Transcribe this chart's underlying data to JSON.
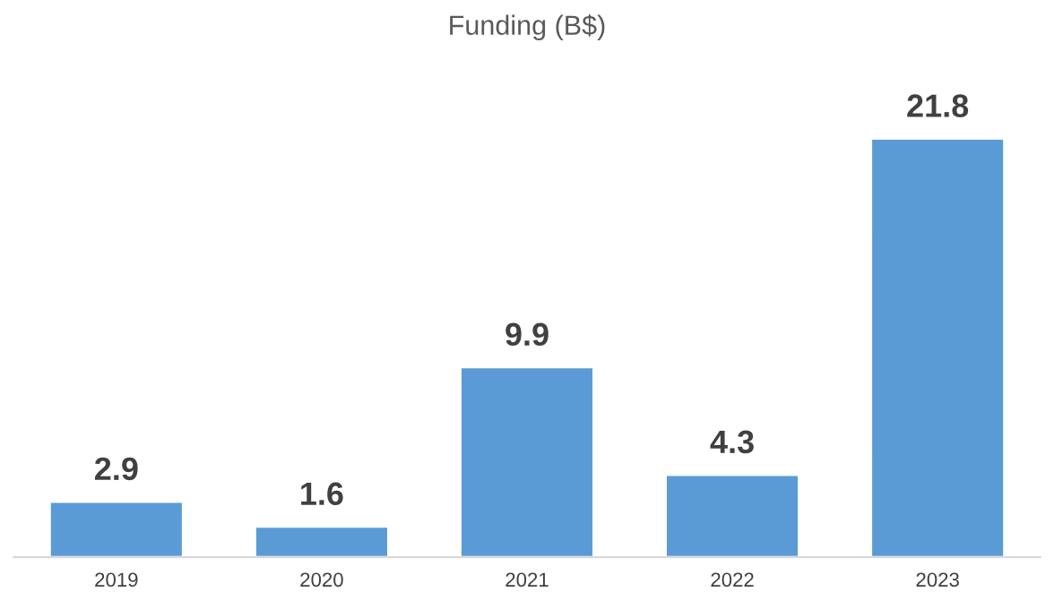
{
  "chart_data": {
    "type": "bar",
    "title": "Funding (B$)",
    "categories": [
      "2019",
      "2020",
      "2021",
      "2022",
      "2023"
    ],
    "values": [
      2.9,
      1.6,
      9.9,
      4.3,
      21.8
    ],
    "color": "#5b9bd5",
    "data_labels": true,
    "grid": false,
    "legend": false
  }
}
